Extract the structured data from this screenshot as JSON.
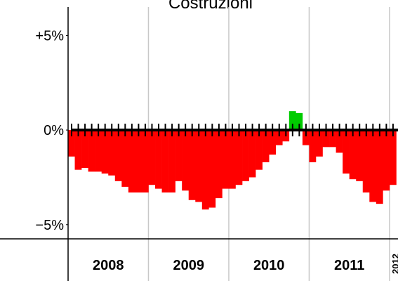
{
  "chart_data": {
    "type": "bar",
    "title": "Costruzioni",
    "categories": [
      null,
      null,
      null,
      null,
      null,
      null,
      null,
      null,
      null,
      null,
      null,
      null,
      null,
      null,
      null,
      null,
      null,
      null,
      null,
      null,
      null,
      null,
      null,
      null,
      null,
      null,
      null,
      null,
      null,
      null,
      null,
      null,
      null,
      null,
      null,
      null,
      null,
      null,
      null,
      null,
      null,
      null,
      null,
      null,
      null,
      null,
      null,
      null,
      null
    ],
    "values": [
      -1.4,
      -2.1,
      -2.0,
      -2.2,
      -2.2,
      -2.3,
      -2.4,
      -2.7,
      -3.0,
      -3.3,
      -3.3,
      -3.3,
      -2.9,
      -3.1,
      -3.3,
      -3.3,
      -2.7,
      -3.2,
      -3.7,
      -3.8,
      -4.2,
      -4.1,
      -3.6,
      -3.1,
      -3.1,
      -2.9,
      -2.7,
      -2.5,
      -2.1,
      -1.7,
      -1.3,
      -0.8,
      -0.6,
      1.0,
      0.9,
      -0.8,
      -1.7,
      -1.4,
      -0.9,
      -0.9,
      -1.2,
      -2.3,
      -2.6,
      -2.7,
      -3.3,
      -3.8,
      -3.9,
      -3.2,
      -2.9
    ],
    "year_labels": [
      "2008",
      "2009",
      "2010",
      "2011",
      "2012"
    ],
    "colors": {
      "positive": "#00cc00",
      "negative": "#ff0000"
    },
    "ylim": [
      -5.75,
      6.5
    ],
    "yticks": [
      {
        "value": 5,
        "label": "+5%"
      },
      {
        "value": 0,
        "label": "0%"
      },
      {
        "value": -5,
        "label": "−5%"
      }
    ],
    "grid": true
  }
}
